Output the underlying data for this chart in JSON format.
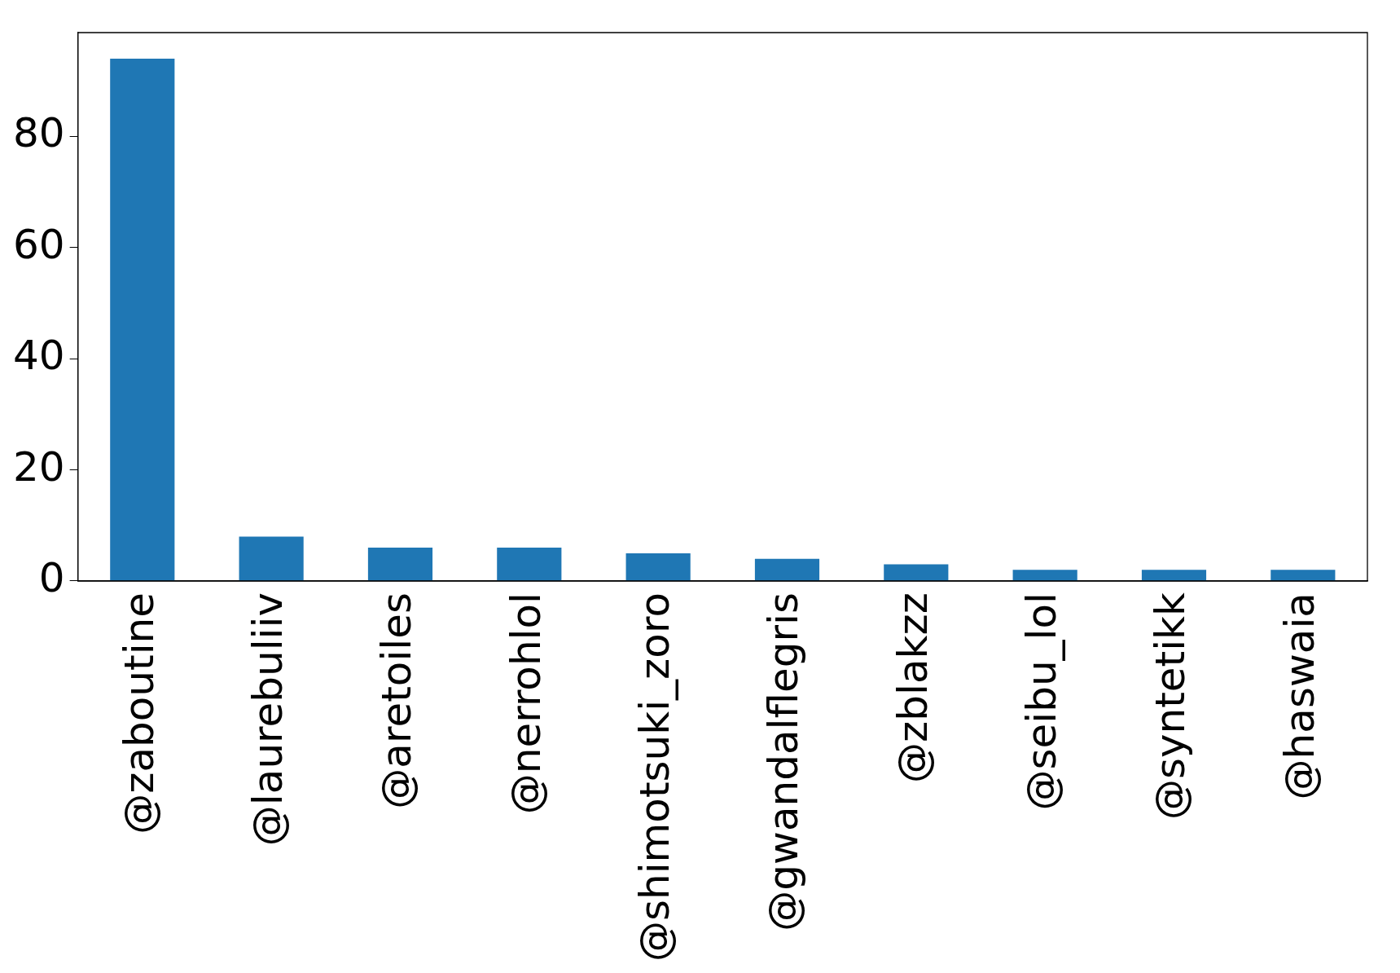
{
  "chart_data": {
    "type": "bar",
    "categories": [
      "@zaboutine",
      "@laurebuliiv",
      "@aretoiles",
      "@nerrohlol",
      "@shimotsuki_zoro",
      "@gwandalflegris",
      "@zblakzz",
      "@seibu_lol",
      "@syntetikk",
      "@haswaia"
    ],
    "values": [
      94,
      8,
      6,
      6,
      5,
      4,
      3,
      2,
      2,
      2
    ],
    "color": "#1f77b4",
    "ylim": [
      0,
      98.7
    ],
    "yticks": [
      0,
      20,
      40,
      60,
      80
    ],
    "grid": false,
    "legend": false
  }
}
